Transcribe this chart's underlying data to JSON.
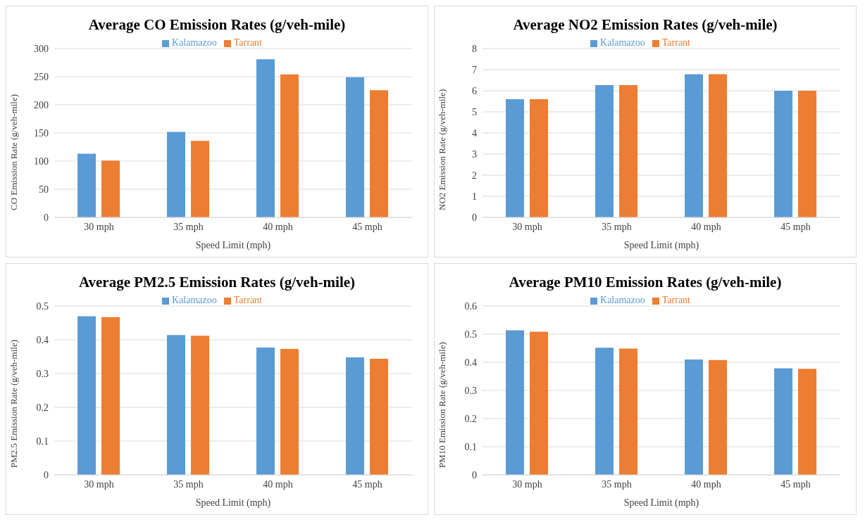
{
  "chart_data": [
    {
      "type": "bar",
      "title": "Average CO Emission Rates (g/veh-mile)",
      "xlabel": "Speed Limit (mph)",
      "ylabel": "CO Emission Rate (g/veh-mile)",
      "categories": [
        "30 mph",
        "35 mph",
        "40 mph",
        "45 mph"
      ],
      "series": [
        {
          "name": "Kalamazoo",
          "color": "#5b9bd5",
          "values": [
            113,
            152,
            281,
            249
          ]
        },
        {
          "name": "Tarrant",
          "color": "#ed7d31",
          "values": [
            101,
            136,
            254,
            226
          ]
        }
      ],
      "ylim": [
        0,
        300
      ],
      "yticks": [
        0,
        50,
        100,
        150,
        200,
        250,
        300
      ],
      "grid": "y",
      "legend": "top"
    },
    {
      "type": "bar",
      "title": "Average NO2 Emission Rates (g/veh-mile)",
      "xlabel": "Speed Limit (mph)",
      "ylabel": "NO2 Emission Rate (g/veh-mile)",
      "categories": [
        "30 mph",
        "35 mph",
        "40 mph",
        "45 mph"
      ],
      "series": [
        {
          "name": "Kalamazoo",
          "color": "#5b9bd5",
          "values": [
            5.6,
            6.27,
            6.78,
            6.0
          ]
        },
        {
          "name": "Tarrant",
          "color": "#ed7d31",
          "values": [
            5.6,
            6.27,
            6.78,
            6.0
          ]
        }
      ],
      "ylim": [
        0,
        8
      ],
      "yticks": [
        0,
        1,
        2,
        3,
        4,
        5,
        6,
        7,
        8
      ],
      "grid": "y",
      "legend": "top"
    },
    {
      "type": "bar",
      "title": "Average PM2.5 Emission Rates (g/veh-mile)",
      "xlabel": "Speed Limit (mph)",
      "ylabel": "PM2.5 Emission Rate (g/veh-mile)",
      "categories": [
        "30 mph",
        "35 mph",
        "40 mph",
        "45 mph"
      ],
      "series": [
        {
          "name": "Kalamazoo",
          "color": "#5b9bd5",
          "values": [
            0.47,
            0.414,
            0.377,
            0.348
          ]
        },
        {
          "name": "Tarrant",
          "color": "#ed7d31",
          "values": [
            0.467,
            0.412,
            0.373,
            0.344
          ]
        }
      ],
      "ylim": [
        0,
        0.5
      ],
      "yticks": [
        0,
        0.1,
        0.2,
        0.3,
        0.4,
        0.5
      ],
      "grid": "y",
      "legend": "top"
    },
    {
      "type": "bar",
      "title": "Average PM10 Emission Rates (g/veh-mile)",
      "xlabel": "Speed Limit (mph)",
      "ylabel": "PM10 Emission Rate (g/veh-mile)",
      "categories": [
        "30 mph",
        "35 mph",
        "40 mph",
        "45 mph"
      ],
      "series": [
        {
          "name": "Kalamazoo",
          "color": "#5b9bd5",
          "values": [
            0.514,
            0.452,
            0.41,
            0.379
          ]
        },
        {
          "name": "Tarrant",
          "color": "#ed7d31",
          "values": [
            0.509,
            0.449,
            0.408,
            0.377
          ]
        }
      ],
      "ylim": [
        0,
        0.6
      ],
      "yticks": [
        0,
        0.1,
        0.2,
        0.3,
        0.4,
        0.5,
        0.6
      ],
      "grid": "y",
      "legend": "top"
    }
  ]
}
